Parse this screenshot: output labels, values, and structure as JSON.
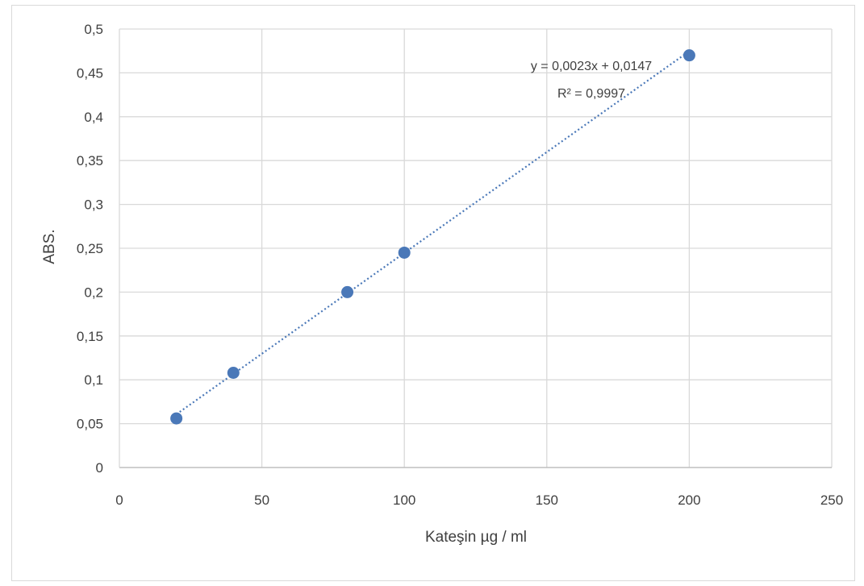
{
  "chart_data": {
    "type": "scatter",
    "title": "",
    "xlabel": "Kateşin µg / ml",
    "ylabel": "ABS.",
    "xlim": [
      0,
      250
    ],
    "ylim": [
      0,
      0.5
    ],
    "x_ticks": [
      0,
      50,
      100,
      150,
      200,
      250
    ],
    "y_ticks": [
      0,
      0.05,
      0.1,
      0.15,
      0.2,
      0.25,
      0.3,
      0.35,
      0.4,
      0.45,
      0.5
    ],
    "x_tick_labels": [
      "0",
      "50",
      "100",
      "150",
      "200",
      "250"
    ],
    "y_tick_labels": [
      "0",
      "0,05",
      "0,1",
      "0,15",
      "0,2",
      "0,25",
      "0,3",
      "0,35",
      "0,4",
      "0,45",
      "0,5"
    ],
    "grid": true,
    "series": [
      {
        "x": [
          20,
          40,
          80,
          100,
          200
        ],
        "y": [
          0.056,
          0.108,
          0.2,
          0.245,
          0.47
        ]
      }
    ],
    "trendline": {
      "type": "linear",
      "slope": 0.0023,
      "intercept": 0.0147,
      "x_range": [
        20,
        200
      ],
      "style": "dotted"
    },
    "annotations": {
      "equation": "y = 0,0023x + 0,0147",
      "r_squared": "R² = 0,9997"
    },
    "colors": {
      "marker": "#4a78b8",
      "trendline": "#4a78b8",
      "grid": "#d9d9d9",
      "text": "#404040"
    }
  }
}
